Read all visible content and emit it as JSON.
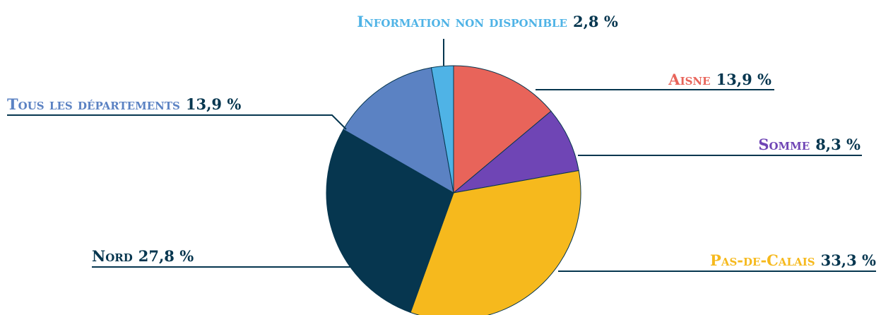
{
  "chart_data": {
    "type": "pie",
    "categories": [
      "Aisne",
      "Somme",
      "Pas-de-Calais",
      "Nord",
      "Tous les départements",
      "Information non disponible"
    ],
    "values": [
      13.9,
      8.3,
      33.3,
      27.8,
      13.9,
      2.8
    ],
    "value_labels": [
      "13,9 %",
      "8,3 %",
      "33,3 %",
      "27,8 %",
      "13,9 %",
      "2,8 %"
    ],
    "colors": [
      "#e8645a",
      "#6f45b5",
      "#f6b91d",
      "#06364f",
      "#5b82c3",
      "#4fb3e6"
    ]
  }
}
